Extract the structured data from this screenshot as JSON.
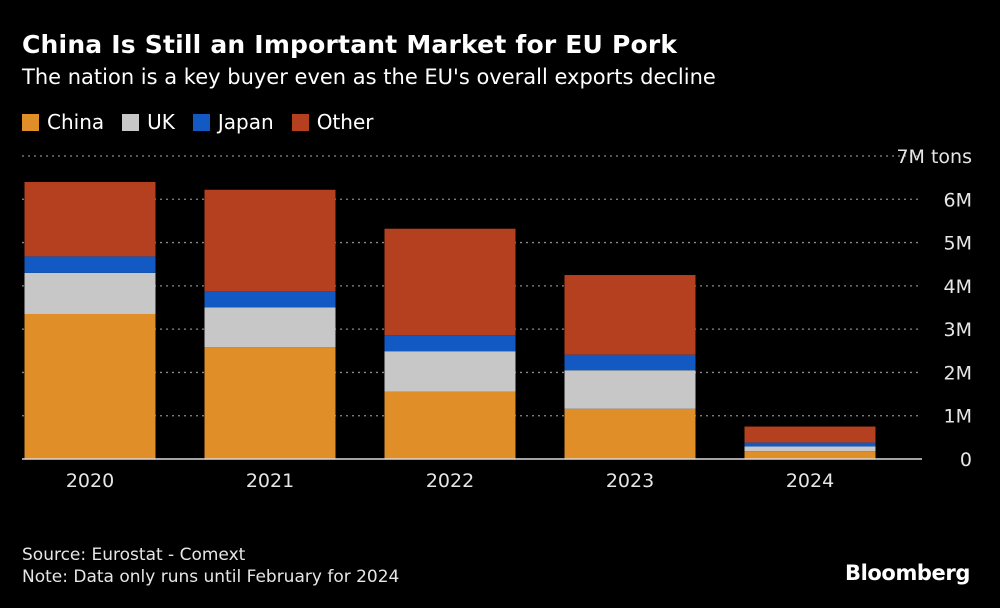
{
  "header": {
    "title": "China Is Still an Important Market for EU Pork",
    "subtitle": "The nation is a key buyer even as the EU's overall exports decline"
  },
  "footer": {
    "source": "Source: Eurostat - Comext",
    "note": "Note: Data only runs until February for 2024",
    "brand": "Bloomberg"
  },
  "chart_data": {
    "type": "bar",
    "stacked": true,
    "categories": [
      "2020",
      "2021",
      "2022",
      "2023",
      "2024"
    ],
    "series": [
      {
        "name": "China",
        "color": "#e08e28",
        "values": [
          3.35,
          2.58,
          1.56,
          1.16,
          0.18
        ]
      },
      {
        "name": "UK",
        "color": "#c7c7c7",
        "values": [
          0.95,
          0.92,
          0.93,
          0.89,
          0.11
        ]
      },
      {
        "name": "Japan",
        "color": "#1259c3",
        "values": [
          0.38,
          0.38,
          0.37,
          0.36,
          0.09
        ]
      },
      {
        "name": "Other",
        "color": "#b5401f",
        "values": [
          1.72,
          2.34,
          2.46,
          1.84,
          0.37
        ]
      }
    ],
    "ylim": [
      0,
      7
    ],
    "yticks": [
      {
        "value": 0,
        "label": "0"
      },
      {
        "value": 1,
        "label": "1M"
      },
      {
        "value": 2,
        "label": "2M"
      },
      {
        "value": 3,
        "label": "3M"
      },
      {
        "value": 4,
        "label": "4M"
      },
      {
        "value": 5,
        "label": "5M"
      },
      {
        "value": 6,
        "label": "6M"
      },
      {
        "value": 7,
        "label": "7M tons"
      }
    ],
    "grid": true,
    "gridStyle": "dotted",
    "legend": "top-left",
    "yaxis": "right"
  }
}
